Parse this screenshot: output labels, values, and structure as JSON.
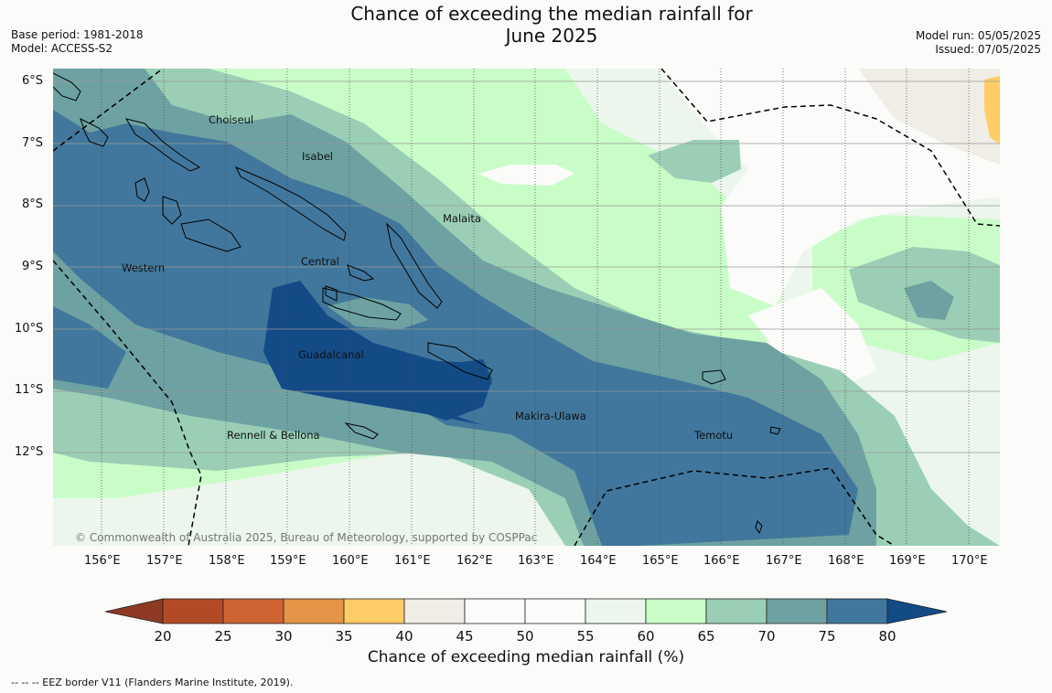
{
  "title": {
    "line1": "Chance of exceeding the median rainfall for",
    "line2": "June 2025"
  },
  "meta_left": {
    "base_period": "Base period: 1981-2018",
    "model": "Model: ACCESS-S2"
  },
  "meta_right": {
    "model_run": "Model run: 05/05/2025",
    "issued": "Issued: 07/05/2025"
  },
  "lat_labels": [
    "6°S",
    "7°S",
    "8°S",
    "9°S",
    "10°S",
    "11°S",
    "12°S"
  ],
  "lon_labels": [
    "156°E",
    "157°E",
    "158°E",
    "159°E",
    "160°E",
    "161°E",
    "162°E",
    "163°E",
    "164°E",
    "165°E",
    "166°E",
    "167°E",
    "168°E",
    "169°E",
    "170°E"
  ],
  "regions": [
    {
      "name": "Choiseul"
    },
    {
      "name": "Isabel"
    },
    {
      "name": "Malaita"
    },
    {
      "name": "Western"
    },
    {
      "name": "Central"
    },
    {
      "name": "Guadalcanal"
    },
    {
      "name": "Makira-Ulawa"
    },
    {
      "name": "Rennell & Bellona"
    },
    {
      "name": "Temotu"
    }
  ],
  "copyright": "© Commonwealth of Australia 2025, Bureau of Meteorology, supported by COSPPac",
  "colorbar": {
    "ticks": [
      "20",
      "25",
      "30",
      "35",
      "40",
      "45",
      "50",
      "55",
      "60",
      "65",
      "70",
      "75",
      "80"
    ],
    "colors": [
      "#8e3a22",
      "#b34a26",
      "#cf6332",
      "#e39447",
      "#ffcc66",
      "#f0ece6",
      "#fbfcfa",
      "#fbfcfa",
      "#ecf6ec",
      "#c9fdc8",
      "#9acfb6",
      "#6ea2a2",
      "#41779c",
      "#134b87"
    ],
    "label": "Chance of exceeding median rainfall (%)"
  },
  "footnote": "--  --  -- EEZ border V11 (Flanders Marine Institute, 2019)."
}
